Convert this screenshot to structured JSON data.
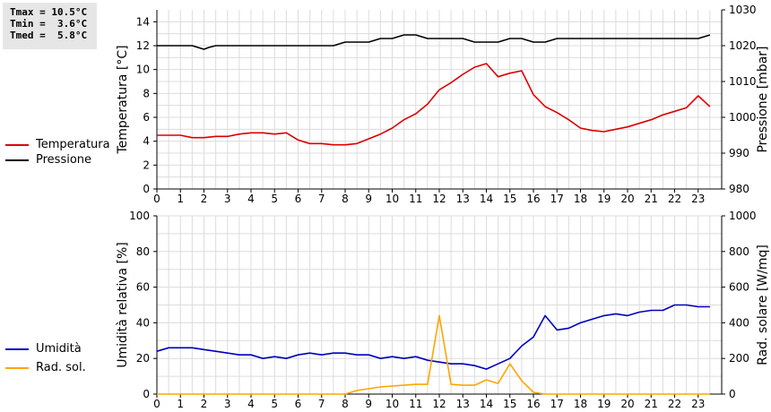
{
  "stats": {
    "tmax": "Tmax = 10.5°C",
    "tmin": "Tmin =  3.6°C",
    "tmed": "Tmed =  5.8°C"
  },
  "chart_data": [
    {
      "type": "line",
      "x_ticks": [
        "0",
        "1",
        "2",
        "3",
        "4",
        "5",
        "6",
        "7",
        "8",
        "9",
        "10",
        "11",
        "12",
        "13",
        "14",
        "15",
        "16",
        "17",
        "18",
        "19",
        "20",
        "21",
        "22",
        "23"
      ],
      "xlim": [
        0,
        24
      ],
      "ylabel": "Temperatura [°C]",
      "ylim": [
        0,
        15
      ],
      "y_ticks": [
        0,
        2,
        4,
        6,
        8,
        10,
        12,
        14
      ],
      "ylabel2": "Pressione [mbar]",
      "ylim2": [
        980,
        1030
      ],
      "y2_ticks": [
        980,
        990,
        1000,
        1010,
        1020,
        1030
      ],
      "grid": true,
      "legend_position": "left",
      "series": [
        {
          "name": "Temperatura",
          "axis": "left",
          "color": "#dd0000",
          "x": [
            0,
            0.5,
            1,
            1.5,
            2,
            2.5,
            3,
            3.5,
            4,
            4.5,
            5,
            5.5,
            6,
            6.5,
            7,
            7.5,
            8,
            8.5,
            9,
            9.5,
            10,
            10.5,
            11,
            11.5,
            12,
            12.5,
            13,
            13.5,
            14,
            14.5,
            15,
            15.5,
            16,
            16.5,
            17,
            17.5,
            18,
            18.5,
            19,
            19.5,
            20,
            20.5,
            21,
            21.5,
            22,
            22.5,
            23,
            23.5
          ],
          "y": [
            4.5,
            4.5,
            4.5,
            4.3,
            4.3,
            4.4,
            4.4,
            4.6,
            4.7,
            4.7,
            4.6,
            4.7,
            4.1,
            3.8,
            3.8,
            3.7,
            3.7,
            3.8,
            4.2,
            4.6,
            5.1,
            5.8,
            6.3,
            7.1,
            8.3,
            8.9,
            9.6,
            10.2,
            10.5,
            9.4,
            9.7,
            9.9,
            7.9,
            6.9,
            6.4,
            5.8,
            5.1,
            4.9,
            4.8,
            5.0,
            5.2,
            5.5,
            5.8,
            6.2,
            6.5,
            6.8,
            7.8,
            6.9
          ]
        },
        {
          "name": "Pressione",
          "axis": "right",
          "color": "#000000",
          "x": [
            0,
            0.5,
            1,
            1.5,
            2,
            2.2,
            2.5,
            3,
            3.5,
            4,
            4.5,
            5,
            5.5,
            6,
            6.5,
            7,
            7.5,
            8,
            8.5,
            9,
            9.5,
            10,
            10.5,
            11,
            11.5,
            12,
            12.5,
            13,
            13.5,
            14,
            14.5,
            15,
            15.5,
            16,
            16.5,
            17,
            17.5,
            18,
            18.5,
            19,
            19.5,
            20,
            20.5,
            21,
            21.5,
            22,
            22.5,
            23,
            23.5
          ],
          "y": [
            1020,
            1020,
            1020,
            1020,
            1019,
            1019.5,
            1020,
            1020,
            1020,
            1020,
            1020,
            1020,
            1020,
            1020,
            1020,
            1020,
            1020,
            1021,
            1021,
            1021,
            1022,
            1022,
            1023,
            1023,
            1022,
            1022,
            1022,
            1022,
            1021,
            1021,
            1021,
            1022,
            1022,
            1021,
            1021,
            1022,
            1022,
            1022,
            1022,
            1022,
            1022,
            1022,
            1022,
            1022,
            1022,
            1022,
            1022,
            1022,
            1023
          ]
        }
      ]
    },
    {
      "type": "line",
      "x_ticks": [
        "0",
        "1",
        "2",
        "3",
        "4",
        "5",
        "6",
        "7",
        "8",
        "9",
        "10",
        "11",
        "12",
        "13",
        "14",
        "15",
        "16",
        "17",
        "18",
        "19",
        "20",
        "21",
        "22",
        "23"
      ],
      "xlim": [
        0,
        24
      ],
      "ylabel": "Umidità relativa [%]",
      "ylim": [
        0,
        100
      ],
      "y_ticks": [
        0,
        20,
        40,
        60,
        80,
        100
      ],
      "ylabel2": "Rad. solare [W/mq]",
      "ylim2": [
        0,
        1000
      ],
      "y2_ticks": [
        0,
        200,
        400,
        600,
        800,
        1000
      ],
      "grid": true,
      "legend_position": "left",
      "series": [
        {
          "name": "Umidità",
          "axis": "left",
          "color": "#0000bb",
          "x": [
            0,
            0.5,
            1,
            1.5,
            2,
            2.5,
            3,
            3.5,
            4,
            4.5,
            5,
            5.5,
            6,
            6.5,
            7,
            7.5,
            8,
            8.5,
            9,
            9.5,
            10,
            10.5,
            11,
            11.5,
            12,
            12.5,
            13,
            13.5,
            14,
            14.5,
            15,
            15.5,
            16,
            16.5,
            17,
            17.5,
            18,
            18.5,
            19,
            19.5,
            20,
            20.5,
            21,
            21.5,
            22,
            22.5,
            23,
            23.5
          ],
          "y": [
            24,
            26,
            26,
            26,
            25,
            24,
            23,
            22,
            22,
            20,
            21,
            20,
            22,
            23,
            22,
            23,
            23,
            22,
            22,
            20,
            21,
            20,
            21,
            19,
            18,
            17,
            17,
            16,
            14,
            17,
            20,
            27,
            32,
            44,
            36,
            37,
            40,
            42,
            44,
            45,
            44,
            46,
            47,
            47,
            50,
            50,
            49,
            49
          ]
        },
        {
          "name": "Rad. sol.",
          "axis": "right",
          "color": "#ffa500",
          "x": [
            0,
            1,
            2,
            3,
            4,
            5,
            6,
            7,
            8,
            8.5,
            9,
            9.5,
            10,
            10.5,
            11,
            11.5,
            12,
            12.5,
            13,
            13.5,
            14,
            14.5,
            15,
            15.5,
            16,
            16.5,
            17,
            18,
            19,
            20,
            21,
            22,
            23,
            23.5
          ],
          "y": [
            0,
            0,
            0,
            0,
            0,
            0,
            0,
            0,
            0,
            20,
            30,
            40,
            45,
            50,
            55,
            55,
            440,
            55,
            50,
            50,
            80,
            60,
            170,
            75,
            10,
            0,
            0,
            0,
            0,
            0,
            0,
            0,
            0,
            0
          ]
        }
      ]
    }
  ]
}
